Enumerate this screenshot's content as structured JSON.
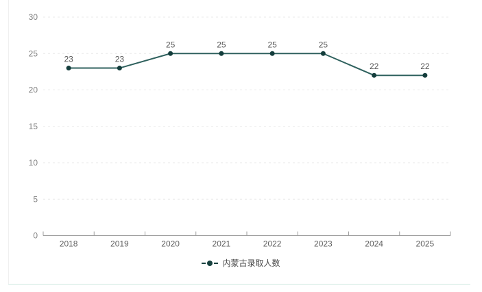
{
  "chart_data": {
    "type": "line",
    "title": "",
    "categories": [
      "2018",
      "2019",
      "2020",
      "2021",
      "2022",
      "2023",
      "2024",
      "2025"
    ],
    "series": [
      {
        "name": "内蒙古录取人数",
        "values": [
          23,
          23,
          25,
          25,
          25,
          25,
          22,
          22
        ]
      }
    ],
    "xlabel": "",
    "ylabel": "",
    "ylim": [
      0,
      30
    ],
    "yticks": [
      0,
      5,
      10,
      15,
      20,
      25,
      30
    ],
    "grid": "horizontal-dashed",
    "legend_position": "bottom-center",
    "show_point_labels": true,
    "colors": {
      "line": "#2f615e",
      "marker": "#143d3c",
      "grid_line": "#e8e8e8",
      "axis_line": "#9e9e9e",
      "y_tick_label": "#828282",
      "x_tick_label": "#5f5f5f",
      "point_label": "#575757",
      "legend_text": "#474747",
      "card_border_left": "#f0f0f0",
      "card_border_bottom": "#e6f3ef",
      "background": "#ffffff"
    }
  },
  "legend": {
    "items": [
      {
        "label": "内蒙古录取人数"
      }
    ]
  }
}
